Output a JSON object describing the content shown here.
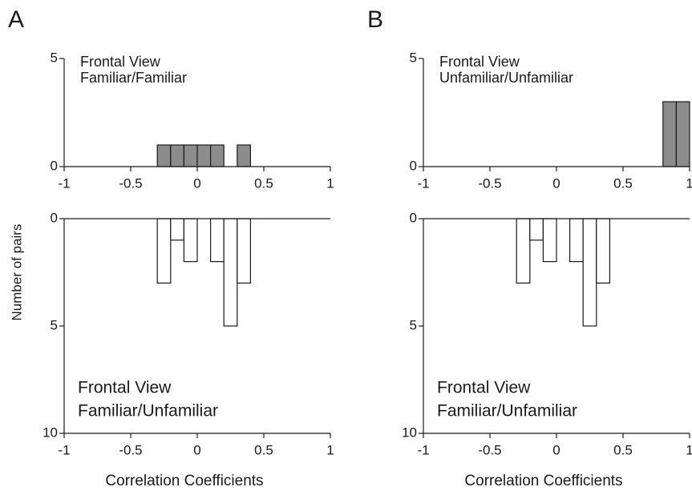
{
  "chart_data": [
    {
      "type": "histogram",
      "panel": "A",
      "ylabel": "Number of pairs",
      "annotation": [
        "Frontal View",
        "Familiar/Familiar"
      ],
      "bins": [
        -1,
        -0.9,
        -0.8,
        -0.7,
        -0.6,
        -0.5,
        -0.4,
        -0.3,
        -0.2,
        -0.1,
        0,
        0.1,
        0.2,
        0.3,
        0.4,
        0.5,
        0.6,
        0.7,
        0.8,
        0.9,
        1
      ],
      "values": [
        0,
        0,
        0,
        0,
        0,
        0,
        0,
        1,
        1,
        1,
        1,
        1,
        0,
        1,
        0,
        0,
        0,
        0,
        0,
        0
      ],
      "color": "#8c8c8c",
      "xlim": [
        -1,
        1
      ],
      "xticks": [
        -1,
        -0.5,
        0,
        0.5,
        1
      ],
      "ylim": [
        0,
        5
      ],
      "yticks": [
        0,
        5
      ],
      "y_inverted": false
    },
    {
      "type": "histogram",
      "xlabel": "Correlation Coefficients",
      "annotation": [
        "Frontal View",
        "Familiar/Unfamiliar"
      ],
      "bins": [
        -1,
        -0.9,
        -0.8,
        -0.7,
        -0.6,
        -0.5,
        -0.4,
        -0.3,
        -0.2,
        -0.1,
        0,
        0.1,
        0.2,
        0.3,
        0.4,
        0.5,
        0.6,
        0.7,
        0.8,
        0.9,
        1
      ],
      "values": [
        0,
        0,
        0,
        0,
        0,
        0,
        0,
        3,
        1,
        2,
        0,
        2,
        5,
        3,
        0,
        0,
        0,
        0,
        0,
        0
      ],
      "color": "#ffffff",
      "xlim": [
        -1,
        1
      ],
      "xticks": [
        -1,
        -0.5,
        0,
        0.5,
        1
      ],
      "ylim": [
        0,
        10
      ],
      "yticks": [
        0,
        5,
        10
      ],
      "y_inverted": true
    },
    {
      "type": "histogram",
      "panel": "B",
      "annotation": [
        "Frontal View",
        "Unfamiliar/Unfamiliar"
      ],
      "bins": [
        -1,
        -0.9,
        -0.8,
        -0.7,
        -0.6,
        -0.5,
        -0.4,
        -0.3,
        -0.2,
        -0.1,
        0,
        0.1,
        0.2,
        0.3,
        0.4,
        0.5,
        0.6,
        0.7,
        0.8,
        0.9,
        1
      ],
      "values": [
        0,
        0,
        0,
        0,
        0,
        0,
        0,
        0,
        0,
        0,
        0,
        0,
        0,
        0,
        0,
        0,
        0,
        0,
        3,
        3
      ],
      "color": "#8c8c8c",
      "xlim": [
        -1,
        1
      ],
      "xticks": [
        -1,
        -0.5,
        0,
        0.5,
        1
      ],
      "ylim": [
        0,
        5
      ],
      "yticks": [
        0,
        5
      ],
      "y_inverted": false
    },
    {
      "type": "histogram",
      "xlabel": "Correlation Coefficients",
      "annotation": [
        "Frontal View",
        "Familiar/Unfamiliar"
      ],
      "bins": [
        -1,
        -0.9,
        -0.8,
        -0.7,
        -0.6,
        -0.5,
        -0.4,
        -0.3,
        -0.2,
        -0.1,
        0,
        0.1,
        0.2,
        0.3,
        0.4,
        0.5,
        0.6,
        0.7,
        0.8,
        0.9,
        1
      ],
      "values": [
        0,
        0,
        0,
        0,
        0,
        0,
        0,
        3,
        1,
        2,
        0,
        2,
        5,
        3,
        0,
        0,
        0,
        0,
        0,
        0
      ],
      "color": "#ffffff",
      "xlim": [
        -1,
        1
      ],
      "xticks": [
        -1,
        -0.5,
        0,
        0.5,
        1
      ],
      "ylim": [
        0,
        10
      ],
      "yticks": [
        0,
        5,
        10
      ],
      "y_inverted": true
    }
  ]
}
